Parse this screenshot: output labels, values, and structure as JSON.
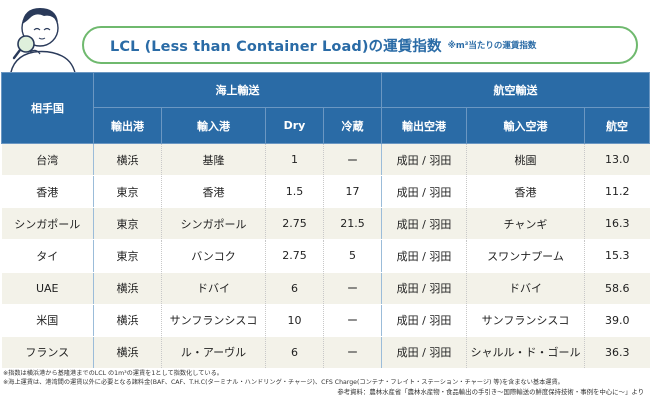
{
  "title": {
    "main": "LCL (Less than Container Load)の運賃指数",
    "note": "※m³当たりの運賃指数"
  },
  "table": {
    "header_partner": "相手国",
    "group_sea": "海上輸送",
    "group_air": "航空輸送",
    "sub_headers": [
      "輸出港",
      "輸入港",
      "Dry",
      "冷蔵",
      "輸出空港",
      "輸入空港",
      "航空"
    ],
    "rows": [
      {
        "country": "台湾",
        "export_port": "横浜",
        "import_port": "基隆",
        "dry": "1",
        "reefer": "ー",
        "export_airport": "成田 / 羽田",
        "import_airport": "桃園",
        "air": "13.0"
      },
      {
        "country": "香港",
        "export_port": "東京",
        "import_port": "香港",
        "dry": "1.5",
        "reefer": "17",
        "export_airport": "成田 / 羽田",
        "import_airport": "香港",
        "air": "11.2"
      },
      {
        "country": "シンガポール",
        "export_port": "東京",
        "import_port": "シンガポール",
        "dry": "2.75",
        "reefer": "21.5",
        "export_airport": "成田 / 羽田",
        "import_airport": "チャンギ",
        "air": "16.3"
      },
      {
        "country": "タイ",
        "export_port": "東京",
        "import_port": "バンコク",
        "dry": "2.75",
        "reefer": "5",
        "export_airport": "成田 / 羽田",
        "import_airport": "スワンナプーム",
        "air": "15.3"
      },
      {
        "country": "UAE",
        "export_port": "横浜",
        "import_port": "ドバイ",
        "dry": "6",
        "reefer": "ー",
        "export_airport": "成田 / 羽田",
        "import_airport": "ドバイ",
        "air": "58.6"
      },
      {
        "country": "米国",
        "export_port": "横浜",
        "import_port": "サンフランシスコ",
        "dry": "10",
        "reefer": "ー",
        "export_airport": "成田 / 羽田",
        "import_airport": "サンフランシスコ",
        "air": "39.0"
      },
      {
        "country": "フランス",
        "export_port": "横浜",
        "import_port": "ル・アーヴル",
        "dry": "6",
        "reefer": "ー",
        "export_airport": "成田 / 羽田",
        "import_airport": "シャルル・ド・ゴール",
        "air": "36.3"
      }
    ]
  },
  "notes": [
    "※指数は横浜港から基隆港までのLCL の1m³の運賃を1として指数化している。",
    "※海上運賃は、港湾間の運賃以外に必要となる諸料金(BAF、CAF、T.H.C(ターミナル・ハンドリング・チャージ)、CFS Charge(コンテナ・フレイト・ステーション・チャージ) 等)を含まない基本運賃。"
  ],
  "source": "参考資料：農林水産省「農林水産物・食品輸出の手引き～国際輸送の鮮度保持技術・事例を中心に～」より",
  "colors": {
    "header_blue": "#2a6ba6",
    "title_border_green": "#6fb96e",
    "row_stripe": "#f3f2e9"
  }
}
